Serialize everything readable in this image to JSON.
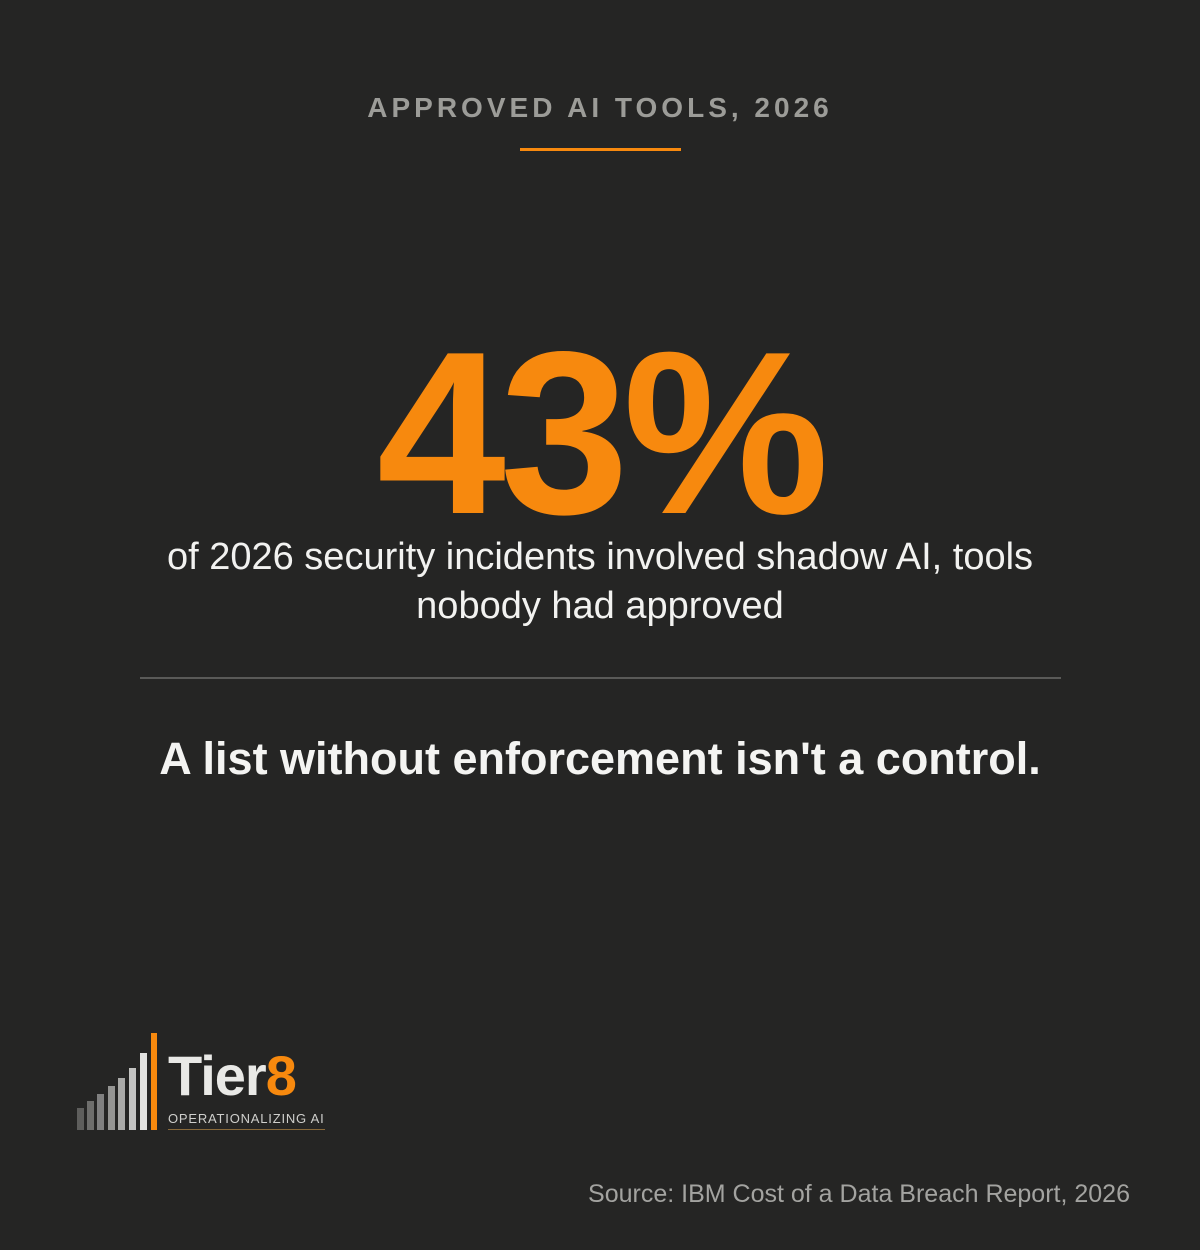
{
  "header": {
    "title": "APPROVED AI TOOLS, 2026"
  },
  "stat": {
    "value": "43%",
    "caption": "of 2026 security incidents involved shadow AI, tools nobody had approved"
  },
  "tagline": "A list without enforcement isn't a control.",
  "logo": {
    "name": "Tier",
    "number": "8",
    "subtitle": "OPERATIONALIZING AI"
  },
  "source": "Source: IBM Cost of a Data Breach Report, 2026"
}
